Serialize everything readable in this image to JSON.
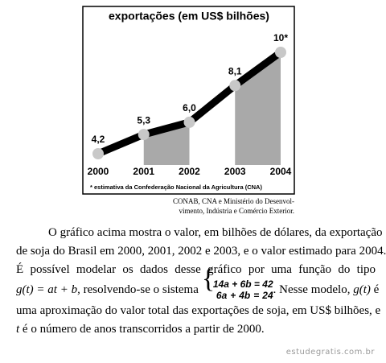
{
  "chart_data": {
    "type": "line",
    "title": "exportações (em US$ bilhões)",
    "categories": [
      "2000",
      "2001",
      "2002",
      "2003",
      "2004"
    ],
    "values": [
      4.2,
      5.3,
      6.0,
      8.1,
      10
    ],
    "value_labels": [
      "4,2",
      "5,3",
      "6,0",
      "8,1",
      "10*"
    ],
    "color": "#000000",
    "marker_color": "#c8c8c8",
    "shade_color": "#a9a9a9",
    "footnote": "* estimativa da Confederação Nacional da Agricultura (CNA)"
  },
  "source": [
    "CONAB, CNA e Ministério do Desenvol-",
    "vimento, Indústria e Comércio Exterior."
  ],
  "text": {
    "line1": "O gráfico acima mostra o valor, em bilhões de dólares, da exportação",
    "line2": "de soja do Brasil em 2000, 2001, 2002 e 2003, e o valor estimado para 2004.",
    "line3": "É possível modelar os dados desse gráfico por uma função do tipo",
    "line4": [
      "g(t) = at + b",
      ", resolvendo-se o sistema",
      ". Nesse modelo, ",
      "g(t)",
      " é"
    ],
    "system": [
      "14a + 6b = 42",
      "6a + 4b = 24"
    ],
    "line5": "uma aproximação do valor total das exportações de soja, em US$ bilhões, e",
    "line6": [
      "t",
      " é o número de anos transcorridos a partir de 2000."
    ]
  },
  "watermark": "estudegratis.com.br"
}
